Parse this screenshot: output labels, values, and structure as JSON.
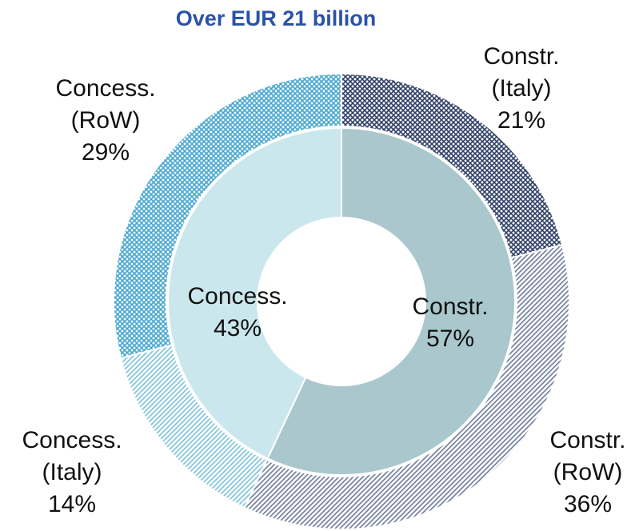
{
  "chart_data": {
    "type": "donut",
    "title": "Over EUR 21 billion",
    "rings": [
      {
        "categories": [
          [
            "Constr."
          ],
          [
            "Concess."
          ]
        ],
        "values": [
          57,
          43
        ],
        "value_labels": [
          "57%",
          "43%"
        ],
        "colors": [
          "#a9c7cc",
          "#cbe7ee"
        ],
        "patterns": [
          "solid",
          "solid"
        ]
      },
      {
        "categories": [
          [
            "Constr.",
            "(Italy)"
          ],
          [
            "Constr.",
            "(RoW)"
          ],
          [
            "Concess.",
            "(Italy)"
          ],
          [
            "Concess.",
            "(RoW)"
          ]
        ],
        "values": [
          21,
          36,
          14,
          29
        ],
        "value_labels": [
          "21%",
          "36%",
          "14%",
          "29%"
        ],
        "colors": [
          "#2f3f66",
          "#6e7c9c",
          "#7cc3dc",
          "#45a6cf"
        ],
        "patterns": [
          "crosshatch",
          "hatch",
          "hatch",
          "crosshatch"
        ]
      }
    ]
  }
}
